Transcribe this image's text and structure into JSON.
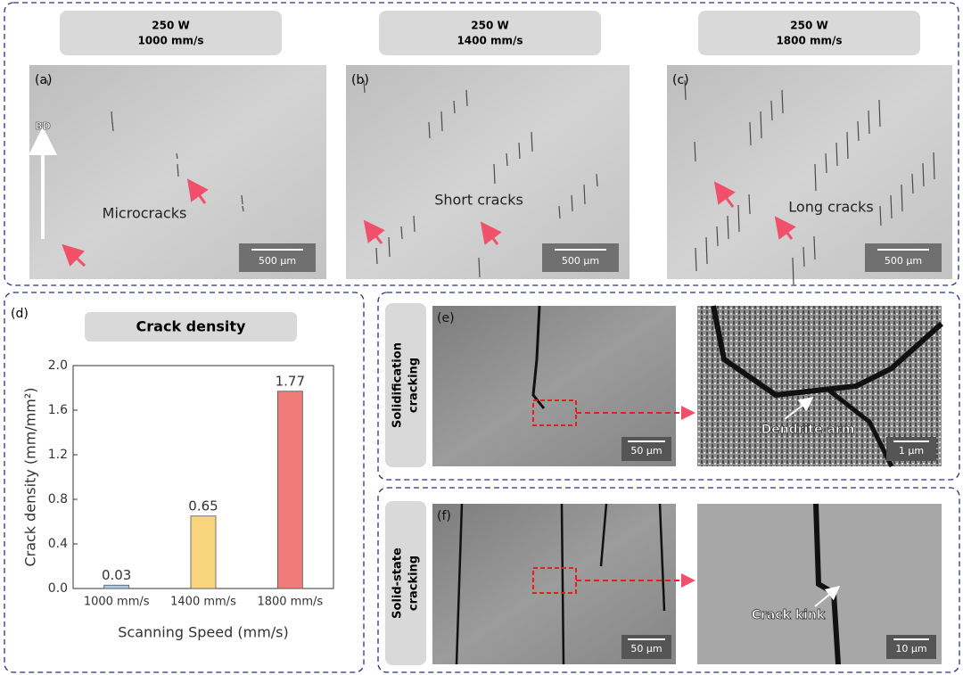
{
  "top_panels": [
    {
      "label": "(a)",
      "header": [
        "250 W",
        "1000 mm/s"
      ],
      "annotation": "Microcracks",
      "scale_bar": "500 µm"
    },
    {
      "label": "(b)",
      "header": [
        "250 W",
        "1400 mm/s"
      ],
      "annotation": "Short cracks",
      "scale_bar": "500 µm"
    },
    {
      "label": "(c)",
      "header": [
        "250 W",
        "1800 mm/s"
      ],
      "annotation": "Long cracks",
      "scale_bar": "500 µm"
    }
  ],
  "bd_label": "BD",
  "chart_data": {
    "type": "bar",
    "panel_label": "(d)",
    "title": "Crack density",
    "categories": [
      "1000 mm/s",
      "1400 mm/s",
      "1800 mm/s"
    ],
    "values": [
      0.03,
      0.65,
      1.77
    ],
    "colors": [
      "#a8cbe8",
      "#f8d47c",
      "#f07c7a"
    ],
    "x_label": "Scanning Speed (mm/s)",
    "y_label": "Crack density (mm/mm²)",
    "ylim": [
      0,
      2
    ],
    "yticks": [
      {
        "value": 0,
        "label": "0.0"
      },
      0.4,
      0.8,
      1.2,
      1.6,
      {
        "value": 2,
        "label": "2.0"
      }
    ]
  },
  "sem_rows": [
    {
      "side_label": [
        "Solidification",
        "cracking"
      ],
      "label": "(e)",
      "scale_left": "50 µm",
      "annotation": "Dendrite arm",
      "scale_right": "1 µm"
    },
    {
      "side_label": [
        "Solid-state",
        "cracking"
      ],
      "label": "(f)",
      "scale_left": "50 µm",
      "annotation": "Crack kink",
      "scale_right": "10 µm"
    }
  ]
}
